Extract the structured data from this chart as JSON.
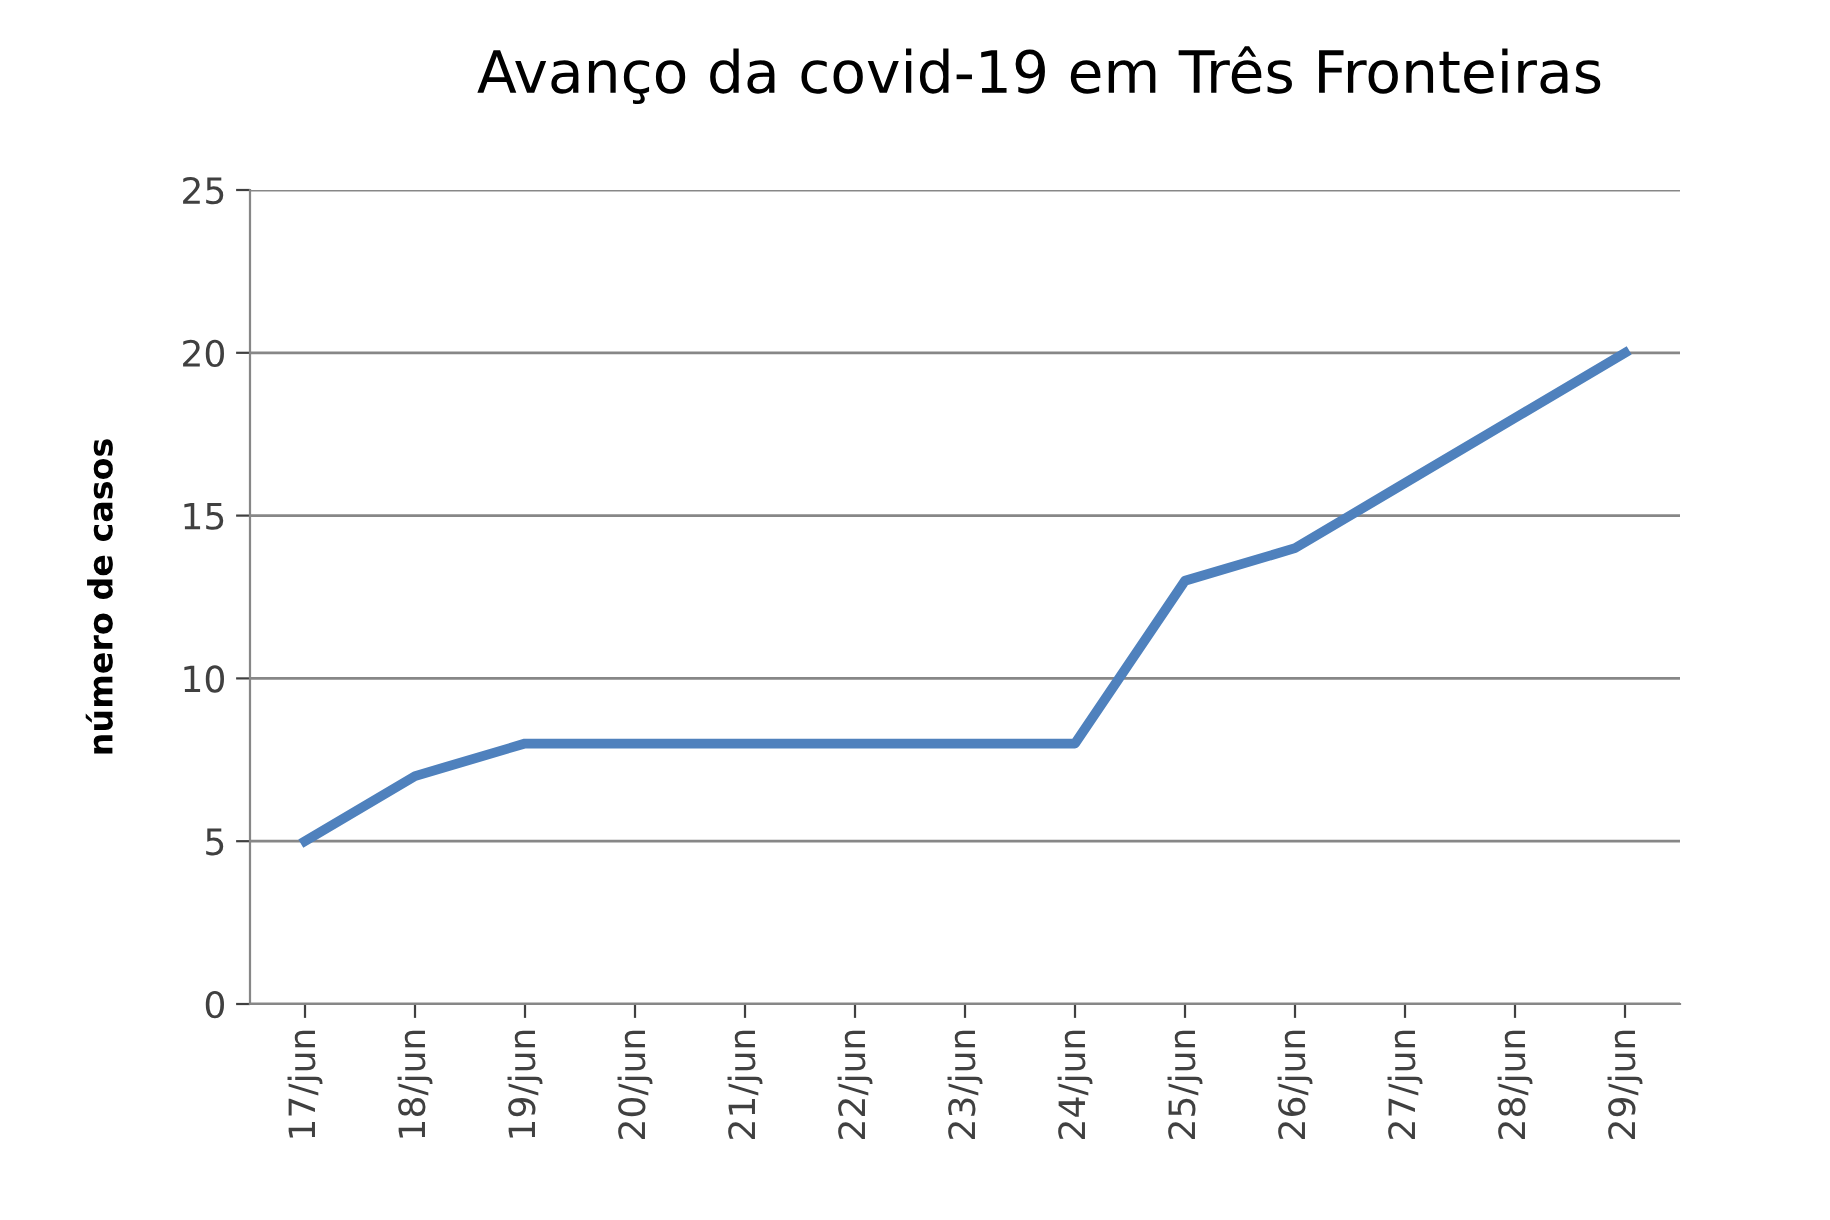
{
  "chart_data": {
    "type": "line",
    "title": "Avanço da covid-19 em Três Fronteiras",
    "ylabel": "número de casos",
    "categories": [
      "17/jun",
      "18/jun",
      "19/jun",
      "20/jun",
      "21/jun",
      "22/jun",
      "23/jun",
      "24/jun",
      "25/jun",
      "26/jun",
      "27/jun",
      "28/jun",
      "29/jun"
    ],
    "series": [
      {
        "color": "#4f81bd",
        "values": [
          5,
          7,
          8,
          8,
          8,
          8,
          8,
          8,
          13,
          14,
          16,
          18,
          20
        ]
      }
    ],
    "ylim": [
      0,
      25
    ],
    "yticks": [
      0,
      5,
      10,
      15,
      20,
      25
    ],
    "grid": "y",
    "marker": "none",
    "line_style": "solid"
  }
}
